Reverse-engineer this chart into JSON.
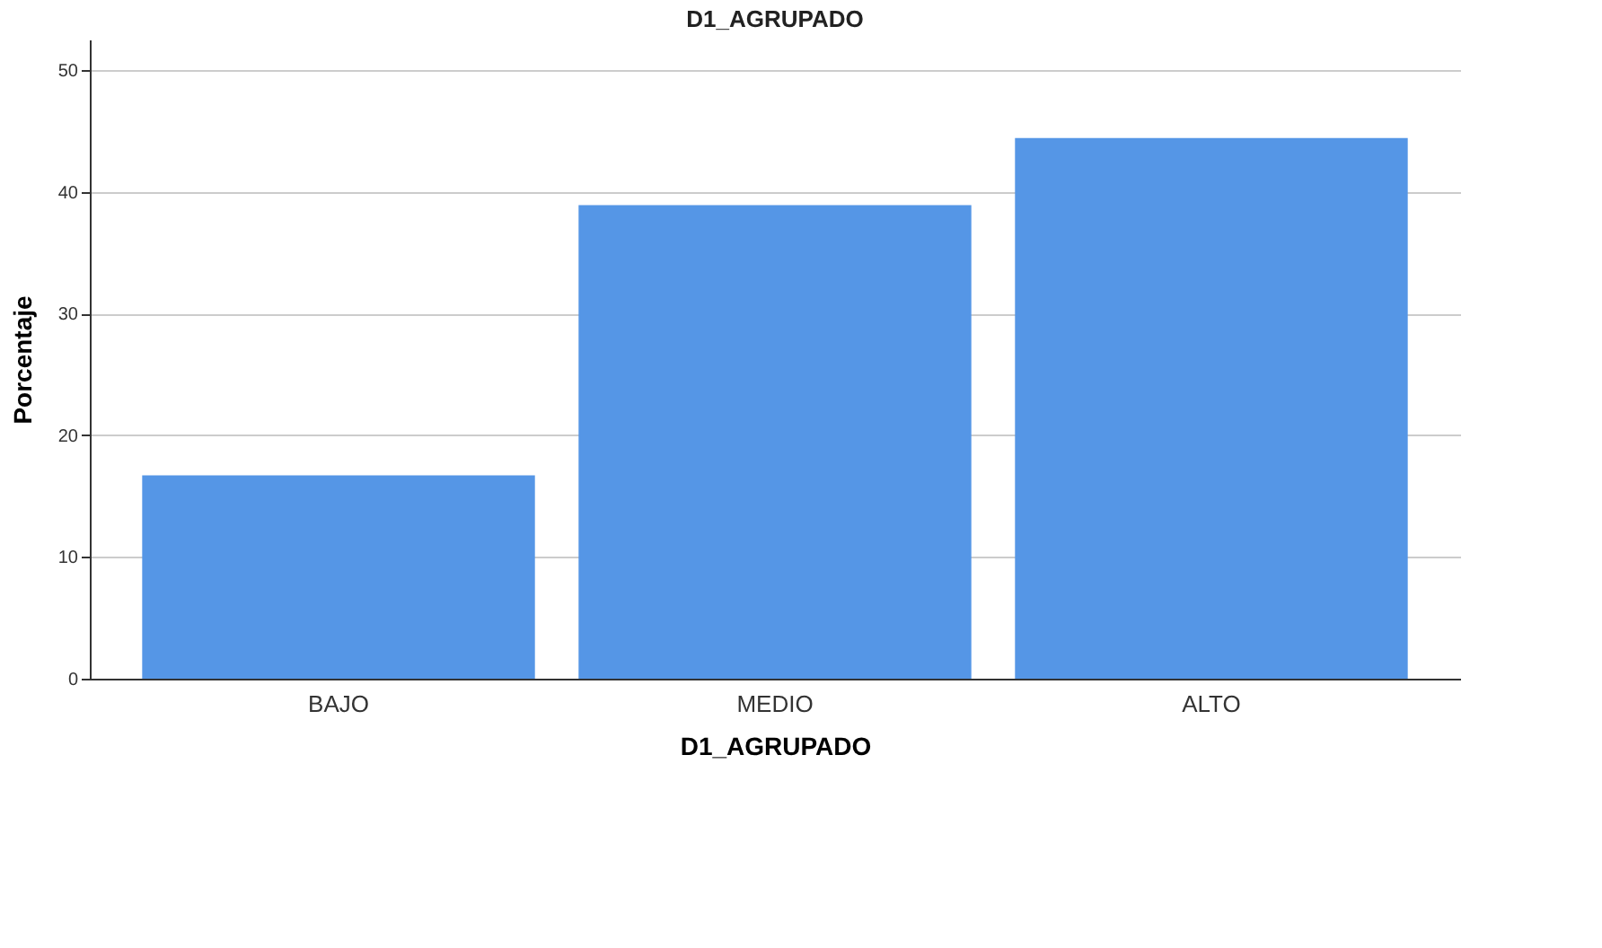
{
  "chart_data": {
    "type": "bar",
    "title": "D1_AGRUPADO",
    "xlabel": "D1_AGRUPADO",
    "ylabel": "Porcentaje",
    "categories": [
      "BAJO",
      "MEDIO",
      "ALTO"
    ],
    "values": [
      16.7,
      38.9,
      44.4
    ],
    "color": "#5596e6",
    "ylim": [
      0,
      52.5
    ],
    "yticks": [
      0,
      10,
      20,
      30,
      40,
      50
    ],
    "grid": "y"
  }
}
